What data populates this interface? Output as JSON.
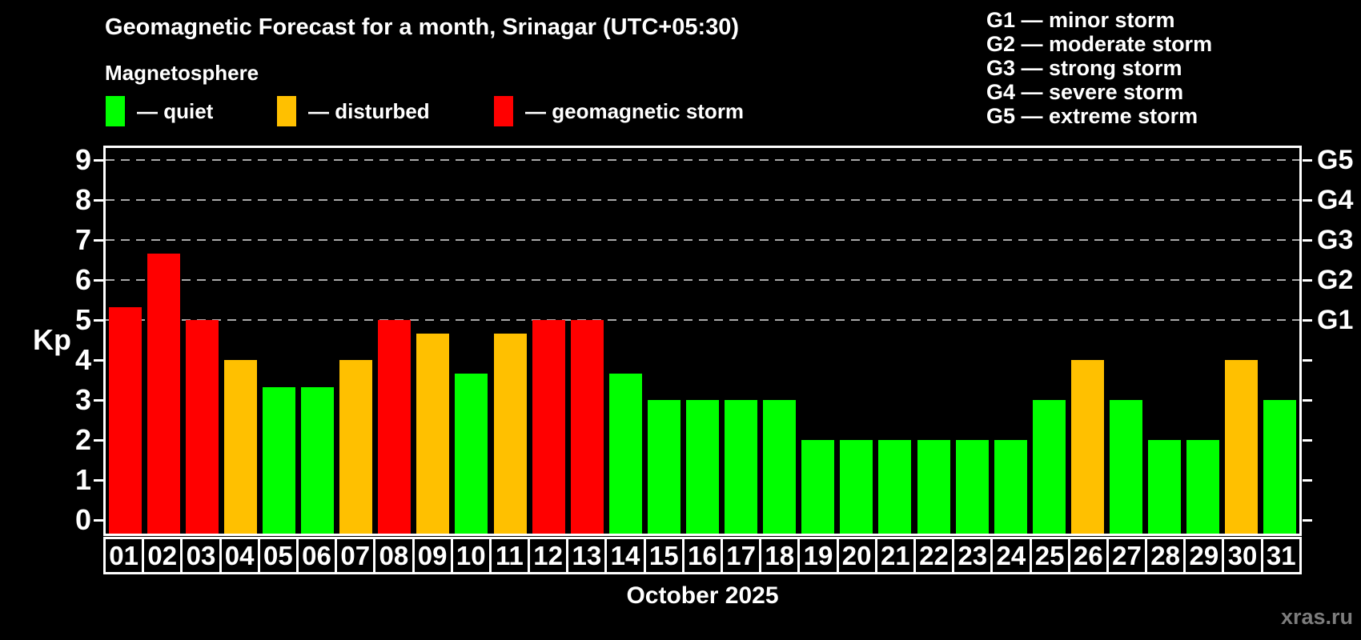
{
  "title": "Geomagnetic Forecast for a month, Srinagar (UTC+05:30)",
  "subtitle": "Magnetosphere",
  "legend": {
    "items": [
      {
        "key": "quiet",
        "label": "— quiet",
        "color": "#00ff00"
      },
      {
        "key": "disturbed",
        "label": "— disturbed",
        "color": "#ffc000"
      },
      {
        "key": "storm",
        "label": "— geomagnetic storm",
        "color": "#ff0000"
      }
    ]
  },
  "storm_scale_legend": [
    "G1 — minor storm",
    "G2 — moderate storm",
    "G3 — strong storm",
    "G4 — severe storm",
    "G5 — extreme storm"
  ],
  "watermark": "xras.ru",
  "chart_data": {
    "type": "bar",
    "title": "Geomagnetic Forecast for a month, Srinagar (UTC+05:30)",
    "xlabel": "October 2025",
    "ylabel": "Kp",
    "ylim": [
      0,
      9
    ],
    "y_ticks": [
      0,
      1,
      2,
      3,
      4,
      5,
      6,
      7,
      8,
      9
    ],
    "gridlines_at_kp": [
      5,
      6,
      7,
      8,
      9
    ],
    "grid": "dashed horizontal lines at Kp 5 to 9 only",
    "legend_position": "top-left",
    "right_axis": [
      {
        "label": "G1",
        "kp": 5
      },
      {
        "label": "G2",
        "kp": 6
      },
      {
        "label": "G3",
        "kp": 7
      },
      {
        "label": "G4",
        "kp": 8
      },
      {
        "label": "G5",
        "kp": 9
      }
    ],
    "categories": [
      "01",
      "02",
      "03",
      "04",
      "05",
      "06",
      "07",
      "08",
      "09",
      "10",
      "11",
      "12",
      "13",
      "14",
      "15",
      "16",
      "17",
      "18",
      "19",
      "20",
      "21",
      "22",
      "23",
      "24",
      "25",
      "26",
      "27",
      "28",
      "29",
      "30",
      "31"
    ],
    "series": [
      {
        "name": "Kp forecast",
        "values": [
          5.33,
          6.67,
          5.0,
          4.0,
          3.33,
          3.33,
          4.0,
          5.0,
          4.67,
          3.67,
          4.67,
          5.0,
          5.0,
          3.67,
          3.0,
          3.0,
          3.0,
          3.0,
          2.0,
          2.0,
          2.0,
          2.0,
          2.0,
          2.0,
          3.0,
          4.0,
          3.0,
          2.0,
          2.0,
          4.0,
          3.0
        ],
        "statuses": [
          "storm",
          "storm",
          "storm",
          "disturbed",
          "quiet",
          "quiet",
          "disturbed",
          "storm",
          "disturbed",
          "quiet",
          "disturbed",
          "storm",
          "storm",
          "quiet",
          "quiet",
          "quiet",
          "quiet",
          "quiet",
          "quiet",
          "quiet",
          "quiet",
          "quiet",
          "quiet",
          "quiet",
          "quiet",
          "disturbed",
          "quiet",
          "quiet",
          "quiet",
          "disturbed",
          "quiet"
        ]
      }
    ],
    "status_colors": {
      "quiet": "#00ff00",
      "disturbed": "#ffc000",
      "storm": "#ff0000"
    }
  }
}
